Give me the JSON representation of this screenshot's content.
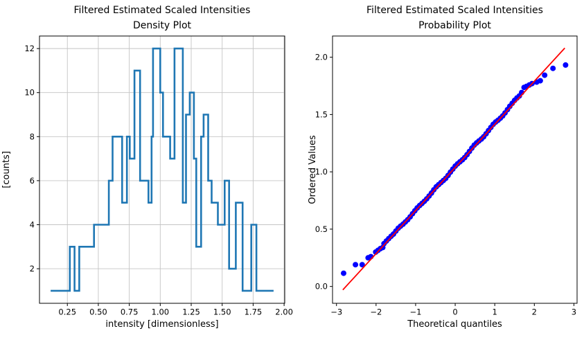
{
  "figure": {
    "background": "#ffffff",
    "text_color": "#000000",
    "grid_color": "#c4c4c4",
    "spine_color": "#000000"
  },
  "chart_data": [
    {
      "type": "histogram-step",
      "title_line1": "Filtered Estimated Scaled Intensities",
      "title_line2": "Density Plot",
      "xlabel": "intensity [dimensionless]",
      "ylabel": "[counts]",
      "xlim": [
        0.025,
        2.005
      ],
      "ylim": [
        0.43,
        12.57
      ],
      "xticks": [
        0.25,
        0.5,
        0.75,
        1.0,
        1.25,
        1.5,
        1.75,
        2.0
      ],
      "xtick_labels": [
        "0.25",
        "0.50",
        "0.75",
        "1.00",
        "1.25",
        "1.50",
        "1.75",
        "2.00"
      ],
      "yticks": [
        2,
        4,
        6,
        8,
        10,
        12
      ],
      "ytick_labels": [
        "2",
        "4",
        "6",
        "8",
        "10",
        "12"
      ],
      "grid": true,
      "line_color": "#1f77b4",
      "line_width": 2.6,
      "bin_edges": [
        0.115,
        0.27,
        0.308,
        0.346,
        0.465,
        0.585,
        0.615,
        0.692,
        0.731,
        0.754,
        0.792,
        0.837,
        0.905,
        0.93,
        0.942,
        1.0,
        1.022,
        1.08,
        1.115,
        1.182,
        1.208,
        1.238,
        1.272,
        1.291,
        1.33,
        1.35,
        1.387,
        1.415,
        1.465,
        1.52,
        1.556,
        1.61,
        1.665,
        1.735,
        1.776,
        1.915
      ],
      "counts": [
        1,
        3,
        1,
        3,
        4,
        6,
        8,
        5,
        8,
        7,
        11,
        6,
        5,
        8,
        12,
        10,
        8,
        7,
        12,
        5,
        9,
        10,
        7,
        3,
        8,
        9,
        6,
        5,
        4,
        6,
        2,
        5,
        1,
        4,
        1
      ]
    },
    {
      "type": "scatter",
      "title_line1": "Filtered Estimated Scaled Intensities",
      "title_line2": "Probability Plot",
      "xlabel": "Theoretical quantiles",
      "ylabel": "Ordered Values",
      "xlim": [
        -3.1,
        3.08
      ],
      "ylim": [
        -0.147,
        2.185
      ],
      "xticks": [
        -3,
        -2,
        -1,
        0,
        1,
        2,
        3
      ],
      "xtick_labels": [
        "−3",
        "−2",
        "−1",
        "0",
        "1",
        "2",
        "3"
      ],
      "yticks": [
        0,
        0.5,
        1.0,
        1.5,
        2.0
      ],
      "ytick_labels": [
        "0.0",
        "0.5",
        "1.0",
        "1.5",
        "2.0"
      ],
      "grid": false,
      "dot_color": "#0000ff",
      "dot_radius": 4,
      "fit_line_color": "#ff0000",
      "fit_line": {
        "x1": -2.84,
        "y1": -0.03,
        "x2": 2.77,
        "y2": 2.08
      },
      "points": [
        [
          -2.82,
          0.115
        ],
        [
          -2.52,
          0.19
        ],
        [
          -2.35,
          0.19
        ],
        [
          -2.2,
          0.25
        ],
        [
          -2.13,
          0.26
        ],
        [
          -2.01,
          0.3
        ],
        [
          -1.95,
          0.315
        ],
        [
          -1.89,
          0.33
        ],
        [
          -1.83,
          0.34
        ],
        [
          -1.8,
          0.374
        ],
        [
          -1.74,
          0.396
        ],
        [
          -1.68,
          0.417
        ],
        [
          -1.62,
          0.438
        ],
        [
          -1.56,
          0.457
        ],
        [
          -1.5,
          0.483
        ],
        [
          -1.44,
          0.508
        ],
        [
          -1.38,
          0.526
        ],
        [
          -1.32,
          0.543
        ],
        [
          -1.26,
          0.562
        ],
        [
          -1.2,
          0.582
        ],
        [
          -1.14,
          0.607
        ],
        [
          -1.08,
          0.634
        ],
        [
          -1.02,
          0.66
        ],
        [
          -0.96,
          0.685
        ],
        [
          -0.9,
          0.706
        ],
        [
          -0.84,
          0.724
        ],
        [
          -0.78,
          0.743
        ],
        [
          -0.72,
          0.764
        ],
        [
          -0.66,
          0.789
        ],
        [
          -0.6,
          0.815
        ],
        [
          -0.54,
          0.843
        ],
        [
          -0.48,
          0.869
        ],
        [
          -0.42,
          0.888
        ],
        [
          -0.36,
          0.906
        ],
        [
          -0.3,
          0.924
        ],
        [
          -0.24,
          0.943
        ],
        [
          -0.18,
          0.969
        ],
        [
          -0.12,
          0.997
        ],
        [
          -0.06,
          1.024
        ],
        [
          0.0,
          1.05
        ],
        [
          0.06,
          1.07
        ],
        [
          0.12,
          1.087
        ],
        [
          0.18,
          1.105
        ],
        [
          0.24,
          1.125
        ],
        [
          0.3,
          1.15
        ],
        [
          0.36,
          1.178
        ],
        [
          0.42,
          1.207
        ],
        [
          0.48,
          1.233
        ],
        [
          0.54,
          1.252
        ],
        [
          0.6,
          1.269
        ],
        [
          0.66,
          1.286
        ],
        [
          0.72,
          1.306
        ],
        [
          0.78,
          1.332
        ],
        [
          0.84,
          1.36
        ],
        [
          0.9,
          1.387
        ],
        [
          0.96,
          1.414
        ],
        [
          1.02,
          1.434
        ],
        [
          1.08,
          1.45
        ],
        [
          1.14,
          1.468
        ],
        [
          1.2,
          1.488
        ],
        [
          1.26,
          1.514
        ],
        [
          1.32,
          1.543
        ],
        [
          1.38,
          1.572
        ],
        [
          1.44,
          1.598
        ],
        [
          1.5,
          1.624
        ],
        [
          1.56,
          1.644
        ],
        [
          1.62,
          1.662
        ],
        [
          1.68,
          1.692
        ],
        [
          1.74,
          1.737
        ],
        [
          1.8,
          1.745
        ],
        [
          1.87,
          1.757
        ],
        [
          1.94,
          1.77
        ],
        [
          2.06,
          1.783
        ],
        [
          2.15,
          1.795
        ],
        [
          2.26,
          1.843
        ],
        [
          2.47,
          1.903
        ],
        [
          2.79,
          1.932
        ]
      ]
    }
  ]
}
